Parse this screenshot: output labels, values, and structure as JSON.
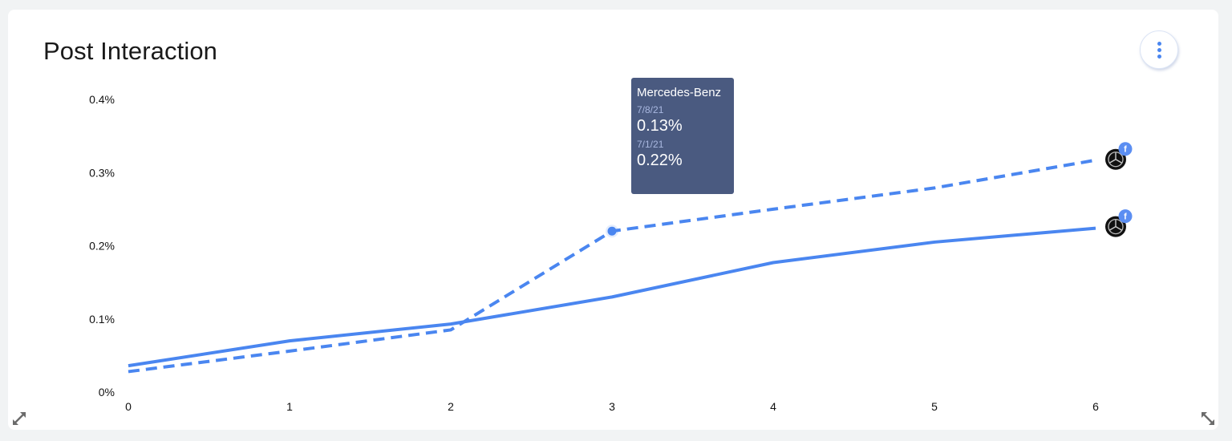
{
  "card": {
    "title": "Post Interaction",
    "menu_icon": "more-vertical-icon"
  },
  "tooltip": {
    "brand": "Mercedes-Benz",
    "rows": [
      {
        "date": "7/8/21",
        "value": "0.13%"
      },
      {
        "date": "7/1/21",
        "value": "0.22%"
      }
    ]
  },
  "colors": {
    "line": "#4a86f0",
    "tooltip_bg": "#4a5a80",
    "background": "#f1f3f4"
  },
  "chart_data": {
    "type": "line",
    "title": "Post Interaction",
    "xlabel": "",
    "ylabel": "",
    "x": [
      0,
      1,
      2,
      3,
      4,
      5,
      6
    ],
    "x_tick_labels": [
      "0",
      "1",
      "2",
      "3",
      "4",
      "5",
      "6"
    ],
    "y_tick_labels": [
      "0%",
      "0.1%",
      "0.2%",
      "0.3%",
      "0.4%"
    ],
    "ylim": [
      0,
      0.4
    ],
    "grid": false,
    "legend": "none (brand logo markers with Facebook badge at line ends)",
    "series": [
      {
        "name": "Mercedes-Benz (7/8/21, current)",
        "style": "solid",
        "values": [
          0.036,
          0.07,
          0.093,
          0.13,
          0.177,
          0.205,
          0.224
        ]
      },
      {
        "name": "Mercedes-Benz (7/1/21, previous)",
        "style": "dashed",
        "values": [
          0.028,
          0.056,
          0.085,
          0.22,
          0.25,
          0.279,
          0.317
        ]
      }
    ],
    "annotations": [
      {
        "type": "tooltip",
        "x": 3,
        "brand": "Mercedes-Benz",
        "entries": [
          {
            "date": "7/8/21",
            "value": "0.13%"
          },
          {
            "date": "7/1/21",
            "value": "0.22%"
          }
        ]
      }
    ]
  }
}
